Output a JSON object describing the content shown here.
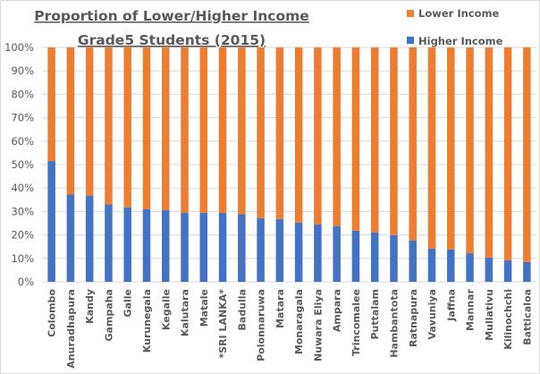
{
  "chart_data": {
    "type": "bar",
    "stacked": "percent",
    "title_lines": [
      "Proportion of Lower/Higher Income",
      "Grade5 Students (2015)"
    ],
    "xlabel": "",
    "ylabel": "",
    "ylim": [
      0,
      100
    ],
    "y_ticks": [
      "0%",
      "10%",
      "20%",
      "30%",
      "40%",
      "50%",
      "60%",
      "70%",
      "80%",
      "90%",
      "100%"
    ],
    "grid": true,
    "legend_position": "top-right",
    "categories": [
      "Colombo",
      "Anuradhapura",
      "Kandy",
      "Gampaha",
      "Galle",
      "Kurunegala",
      "Kegalle",
      "Kalutara",
      "Matale",
      "*SRI LANKA*",
      "Badulla",
      "Polonnaruwa",
      "Matara",
      "Monaragala",
      "Nuwara Eliya",
      "Ampara",
      "Trincomalee",
      "Puttalam",
      "Hambantota",
      "Ratnapura",
      "Vavuniya",
      "Jaffna",
      "Mannar",
      "Mullativu",
      "Kilinochchi",
      "Batticaloa"
    ],
    "series": [
      {
        "name": "Higher Income",
        "color": "#4472c4",
        "values": [
          51.5,
          37.2,
          36.8,
          33.0,
          31.8,
          31.0,
          30.6,
          29.5,
          29.5,
          29.4,
          28.8,
          27.2,
          26.8,
          25.3,
          24.5,
          23.8,
          21.8,
          21.1,
          19.9,
          17.7,
          14.2,
          13.8,
          12.2,
          10.4,
          9.2,
          8.5
        ]
      },
      {
        "name": "Lower Income",
        "color": "#ed7d31",
        "values": [
          48.5,
          62.8,
          63.2,
          67.0,
          68.2,
          69.0,
          69.4,
          70.5,
          70.5,
          70.6,
          71.2,
          72.8,
          73.2,
          74.7,
          75.5,
          76.2,
          78.2,
          78.9,
          80.1,
          82.3,
          85.8,
          86.2,
          87.8,
          89.6,
          90.8,
          91.5
        ]
      }
    ],
    "legend": [
      {
        "name": "Lower Income",
        "color": "#ed7d31"
      },
      {
        "name": "Higher Income",
        "color": "#4472c4"
      }
    ]
  }
}
